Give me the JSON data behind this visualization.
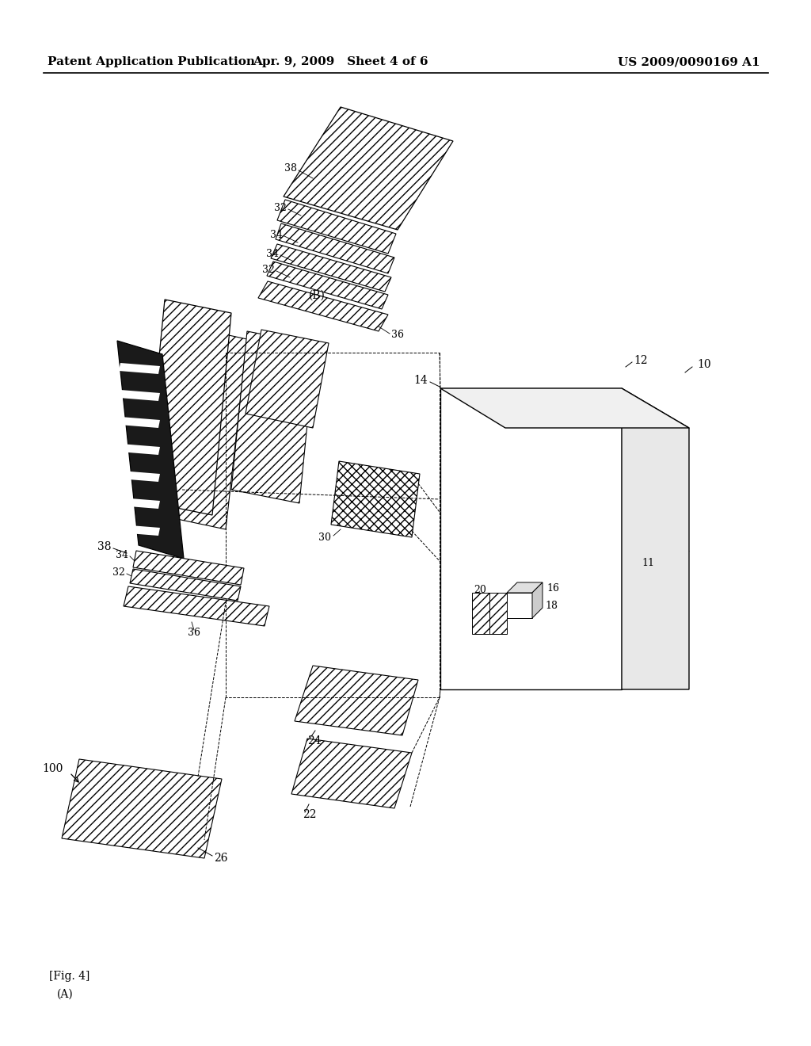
{
  "header_left": "Patent Application Publication",
  "header_center": "Apr. 9, 2009   Sheet 4 of 6",
  "header_right": "US 2009/0090169 A1",
  "background": "#ffffff",
  "header_fontsize": 11,
  "fig_label": "[Fig. 4]",
  "sub_label_a": "(A)",
  "sub_label_b": "(B)"
}
